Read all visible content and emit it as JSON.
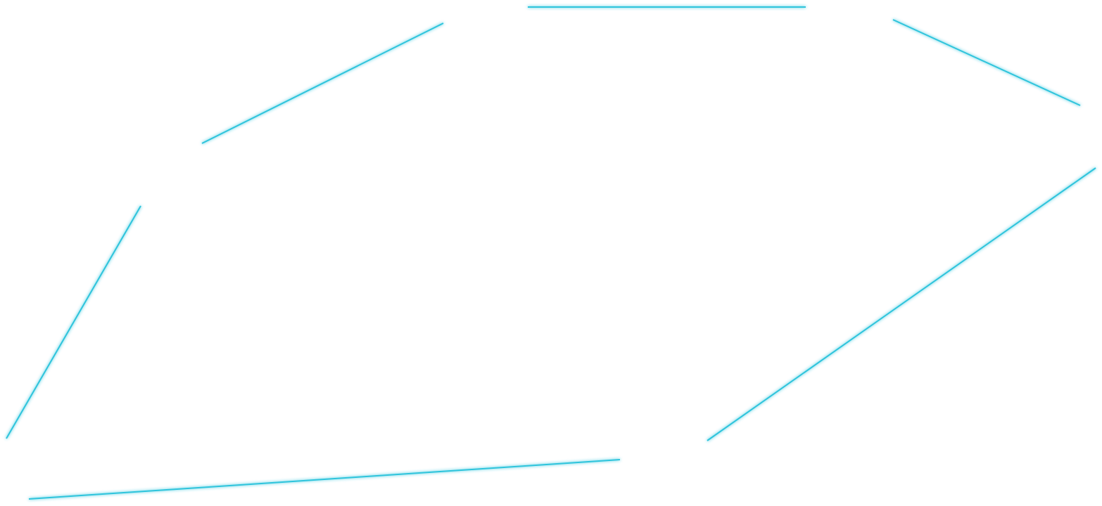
{
  "canvas": {
    "background": "#ffffff",
    "line_color": "#2ec4dc",
    "glow_color": "#9fe8f5",
    "segment_count": 6
  }
}
